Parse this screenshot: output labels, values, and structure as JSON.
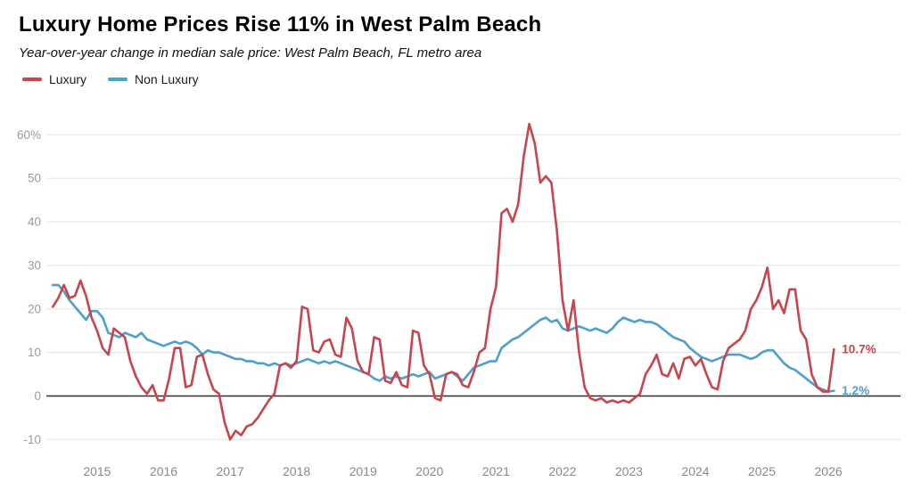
{
  "header": {
    "title": "Luxury Home Prices Rise 11% in West Palm Beach",
    "subtitle": "Year-over-year change in median sale price: West Palm Beach, FL metro area"
  },
  "legend": [
    {
      "label": "Luxury",
      "color": "#c9444c"
    },
    {
      "label": "Non Luxury",
      "color": "#4d9fcc"
    }
  ],
  "end_labels": [
    {
      "text": "10.7%",
      "value": 10.7,
      "color": "#c9444c"
    },
    {
      "text": "1.2%",
      "value": 1.2,
      "color": "#4d9fcc"
    }
  ],
  "chart_data": {
    "type": "line",
    "title": "Luxury Home Prices Rise 11% in West Palm Beach",
    "subtitle": "Year-over-year change in median sale price: West Palm Beach, FL metro area",
    "x_start": {
      "year": 2014,
      "month": 5
    },
    "frequency": "monthly",
    "xlim": [
      2014.29,
      2026.2
    ],
    "ylim": [
      -13,
      66
    ],
    "y_ticks": [
      60,
      50,
      40,
      30,
      20,
      10,
      0,
      -10
    ],
    "y_tick_labels": [
      "60%",
      "50",
      "40",
      "30",
      "20",
      "10",
      "0",
      "-10"
    ],
    "x_tick_labels": [
      "2015",
      "2016",
      "2017",
      "2018",
      "2019",
      "2020",
      "2021",
      "2022",
      "2023",
      "2024",
      "2025",
      "2026"
    ],
    "grid": "horizontal",
    "legend_position": "top-left",
    "series": [
      {
        "name": "Luxury",
        "color": "#c9444c",
        "values": [
          20.5,
          22.5,
          25.5,
          22.5,
          23,
          26.5,
          23,
          18,
          15,
          11,
          9.5,
          15.5,
          14.5,
          13.5,
          8,
          4.5,
          2,
          0.5,
          2.5,
          -1,
          -1,
          4,
          11,
          11,
          2,
          2.5,
          9,
          9.5,
          5,
          1.5,
          0.5,
          -6,
          -10,
          -8,
          -9,
          -7,
          -6.5,
          -5,
          -3,
          -1,
          0.5,
          7,
          7.5,
          6.5,
          8,
          20.5,
          20,
          10.5,
          10,
          12.5,
          13,
          9.5,
          9,
          18,
          15.5,
          8,
          5.5,
          5,
          13.5,
          13,
          3.5,
          3,
          5.5,
          2.5,
          2,
          15,
          14.5,
          7,
          5,
          -0.5,
          -1,
          5,
          5.5,
          5,
          2.5,
          2,
          5.5,
          10,
          11,
          20,
          25,
          42,
          43,
          40,
          44,
          55,
          62.5,
          58,
          49,
          50.5,
          49,
          38,
          22,
          15,
          22,
          10,
          2,
          -0.5,
          -1,
          -0.5,
          -1.5,
          -1,
          -1.5,
          -1,
          -1.5,
          -0.5,
          0.5,
          5,
          7,
          9.5,
          5,
          4.5,
          7.5,
          4,
          8.5,
          9,
          7,
          8.5,
          5,
          2,
          1.5,
          8,
          11,
          12,
          13,
          15,
          20,
          22,
          25,
          29.5,
          20,
          22,
          19,
          24.5,
          24.5,
          15,
          13,
          5,
          2,
          1,
          1,
          10.7
        ]
      },
      {
        "name": "Non Luxury",
        "color": "#4d9fcc",
        "values": [
          25.5,
          25.5,
          24,
          22,
          20.5,
          19,
          17.5,
          19.5,
          19.5,
          18,
          14.5,
          14,
          13.5,
          14.5,
          14,
          13.5,
          14.5,
          13,
          12.5,
          12,
          11.5,
          12,
          12.5,
          12,
          12.5,
          12,
          11,
          9.5,
          10.5,
          10,
          10,
          9.5,
          9,
          8.5,
          8.5,
          8,
          8,
          7.5,
          7.5,
          7,
          7.5,
          7,
          7.5,
          7,
          7.5,
          8,
          8.5,
          8,
          7.5,
          8,
          7.5,
          8,
          7.5,
          7,
          6.5,
          6,
          5.5,
          5,
          4,
          3.5,
          4.5,
          4,
          4.5,
          4,
          4.5,
          5,
          4.5,
          5,
          5.5,
          4,
          4.5,
          5,
          5.5,
          4.5,
          3.5,
          5,
          6.5,
          7,
          7.5,
          8,
          8,
          11,
          12,
          13,
          13.5,
          14.5,
          15.5,
          16.5,
          17.5,
          18,
          17,
          17.5,
          15.5,
          15,
          15.5,
          16,
          15.5,
          15,
          15.5,
          15,
          14.5,
          15.5,
          17,
          18,
          17.5,
          17,
          17.5,
          17,
          17,
          16.5,
          15.5,
          14.5,
          13.5,
          13,
          12.5,
          11,
          10,
          9,
          8.5,
          8,
          8.5,
          9,
          9.5,
          9.5,
          9.5,
          9,
          8.5,
          9,
          10,
          10.5,
          10.5,
          9,
          7.5,
          6.5,
          6,
          5,
          4,
          3,
          2,
          1.5,
          1,
          1.2
        ]
      }
    ]
  }
}
